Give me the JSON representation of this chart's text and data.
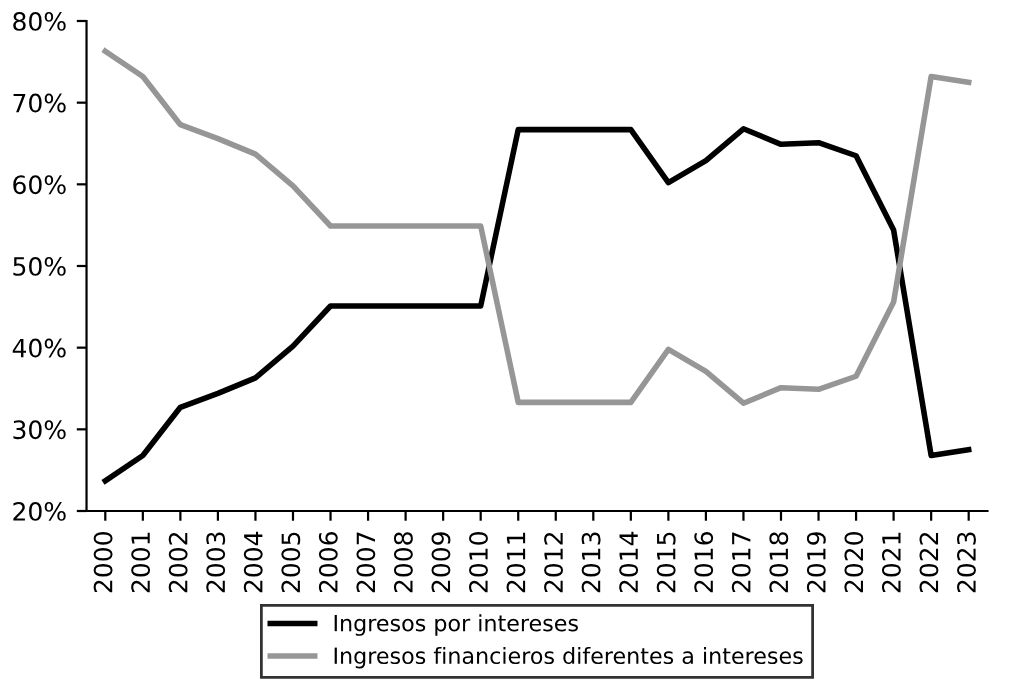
{
  "chart_data": {
    "type": "line",
    "categories": [
      "2000",
      "2001",
      "2002",
      "2003",
      "2004",
      "2005",
      "2006",
      "2007",
      "2008",
      "2009",
      "2010",
      "2011",
      "2012",
      "2013",
      "2014",
      "2015",
      "2016",
      "2017",
      "2018",
      "2019",
      "2020",
      "2021",
      "2022",
      "2023"
    ],
    "series": [
      {
        "name": "Ingresos por intereses",
        "color": "#000000",
        "values": [
          23.7,
          26.8,
          32.7,
          34.4,
          36.3,
          40.2,
          45.1,
          45.1,
          45.1,
          45.1,
          45.1,
          66.7,
          66.7,
          66.7,
          66.7,
          60.2,
          62.9,
          66.8,
          64.9,
          65.1,
          63.5,
          54.4,
          26.8,
          27.5
        ]
      },
      {
        "name": "Ingresos financieros diferentes a intereses",
        "color": "#969696",
        "values": [
          76.3,
          73.2,
          67.3,
          65.6,
          63.7,
          59.8,
          54.9,
          54.9,
          54.9,
          54.9,
          54.9,
          33.3,
          33.3,
          33.3,
          33.3,
          39.8,
          37.1,
          33.2,
          35.1,
          34.9,
          36.5,
          45.6,
          73.2,
          72.5
        ]
      }
    ],
    "ylim": [
      20,
      80
    ],
    "yticks": [
      {
        "value": 20,
        "label": "20%"
      },
      {
        "value": 30,
        "label": "30%"
      },
      {
        "value": 40,
        "label": "40%"
      },
      {
        "value": 50,
        "label": "50%"
      },
      {
        "value": 60,
        "label": "60%"
      },
      {
        "value": 70,
        "label": "70%"
      },
      {
        "value": 80,
        "label": "80%"
      }
    ],
    "grid": false,
    "legend": "bottom",
    "marker": "none",
    "line_style": "solid"
  }
}
